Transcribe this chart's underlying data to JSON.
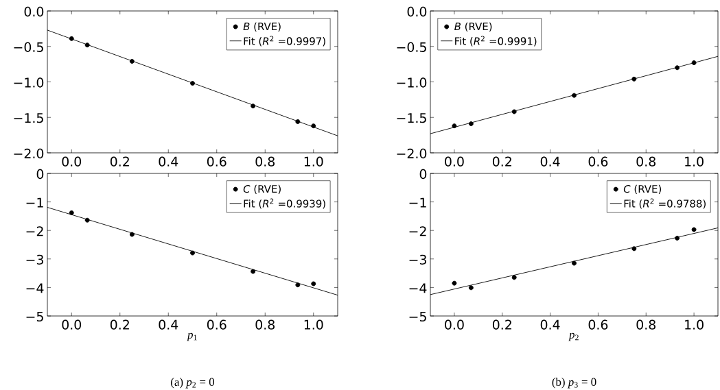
{
  "chart_data": [
    {
      "type": "scatter",
      "legend": "top right",
      "xlim": [
        -0.1,
        1.1
      ],
      "ylim": [
        -2.0,
        0.0
      ],
      "xticks": [
        {
          "value": 0,
          "label": "0.0"
        },
        {
          "value": 0.2,
          "label": "0.2"
        },
        {
          "value": 0.4,
          "label": "0.4"
        },
        {
          "value": 0.6,
          "label": "0.6"
        },
        {
          "value": 0.8,
          "label": "0.8"
        },
        {
          "value": 1,
          "label": "1.0"
        }
      ],
      "yticks": [
        {
          "value": -2,
          "label": "−2.0"
        },
        {
          "value": -1.5,
          "label": "−1.5"
        },
        {
          "value": -1,
          "label": "−1.0"
        },
        {
          "value": -0.5,
          "label": "−0.5"
        },
        {
          "value": 0,
          "label": "0.0"
        }
      ],
      "series": [
        {
          "name": "*B* (RVE)",
          "marker": "circle",
          "color": "#000000",
          "x": [
            0,
            0.065,
            0.25,
            0.5,
            0.75,
            0.935,
            1.0
          ],
          "values": [
            -0.39,
            -0.48,
            -0.71,
            -1.02,
            -1.34,
            -1.56,
            -1.62
          ]
        },
        {
          "name": "Fit (*R*$^{2}$ =0.9997)",
          "type": "line",
          "marker": "none",
          "line_style": "solid",
          "color": "#000000",
          "x": [
            -0.1,
            1.1
          ],
          "values": [
            -0.27,
            -1.76
          ]
        }
      ]
    },
    {
      "type": "scatter",
      "legend": "top left",
      "xlim": [
        -0.1,
        1.1
      ],
      "ylim": [
        -2.0,
        0.0
      ],
      "xticks": [
        {
          "value": 0,
          "label": "0.0"
        },
        {
          "value": 0.2,
          "label": "0.2"
        },
        {
          "value": 0.4,
          "label": "0.4"
        },
        {
          "value": 0.6,
          "label": "0.6"
        },
        {
          "value": 0.8,
          "label": "0.8"
        },
        {
          "value": 1,
          "label": "1.0"
        }
      ],
      "yticks": [
        {
          "value": -2,
          "label": "−2.0"
        },
        {
          "value": -1.5,
          "label": "−1.5"
        },
        {
          "value": -1,
          "label": "−1.0"
        },
        {
          "value": -0.5,
          "label": "−0.5"
        },
        {
          "value": 0,
          "label": "0.0"
        }
      ],
      "series": [
        {
          "name": "*B* (RVE)",
          "marker": "circle",
          "color": "#000000",
          "x": [
            0,
            0.07,
            0.25,
            0.5,
            0.75,
            0.93,
            1.0
          ],
          "values": [
            -1.62,
            -1.59,
            -1.42,
            -1.19,
            -0.96,
            -0.8,
            -0.73
          ]
        },
        {
          "name": "Fit (*R*$^{2}$ =0.9991)",
          "type": "line",
          "marker": "none",
          "line_style": "solid",
          "color": "#000000",
          "x": [
            -0.1,
            1.1
          ],
          "values": [
            -1.73,
            -0.64
          ]
        }
      ]
    },
    {
      "type": "scatter",
      "legend": "top right",
      "xlim": [
        -0.1,
        1.1
      ],
      "ylim": [
        -5,
        0
      ],
      "xlabel": "*p*$_{1}$",
      "annotations": [
        "(a) *p*$_{2}$ = 0"
      ],
      "xticks": [
        {
          "value": 0,
          "label": "0.0"
        },
        {
          "value": 0.2,
          "label": "0.2"
        },
        {
          "value": 0.4,
          "label": "0.4"
        },
        {
          "value": 0.6,
          "label": "0.6"
        },
        {
          "value": 0.8,
          "label": "0.8"
        },
        {
          "value": 1,
          "label": "1.0"
        }
      ],
      "yticks": [
        {
          "value": -5,
          "label": "−5"
        },
        {
          "value": -4,
          "label": "−4"
        },
        {
          "value": -3,
          "label": "−3"
        },
        {
          "value": -2,
          "label": "−2"
        },
        {
          "value": -1,
          "label": "−1"
        },
        {
          "value": 0,
          "label": "0"
        }
      ],
      "series": [
        {
          "name": "*C* (RVE)",
          "marker": "circle",
          "color": "#000000",
          "x": [
            0,
            0.065,
            0.25,
            0.5,
            0.75,
            0.935,
            1.0
          ],
          "values": [
            -1.38,
            -1.64,
            -2.14,
            -2.79,
            -3.44,
            -3.91,
            -3.87
          ]
        },
        {
          "name": "Fit (*R*$^{2}$ =0.9939)",
          "type": "line",
          "marker": "none",
          "line_style": "solid",
          "color": "#000000",
          "x": [
            -0.1,
            1.1
          ],
          "values": [
            -1.19,
            -4.27
          ]
        }
      ]
    },
    {
      "type": "scatter",
      "legend": "top right",
      "xlim": [
        -0.1,
        1.1
      ],
      "ylim": [
        -5,
        0
      ],
      "xlabel": "*p*$_{2}$",
      "annotations": [
        "(b) *p*$_{3}$ = 0"
      ],
      "xticks": [
        {
          "value": 0,
          "label": "0.0"
        },
        {
          "value": 0.2,
          "label": "0.2"
        },
        {
          "value": 0.4,
          "label": "0.4"
        },
        {
          "value": 0.6,
          "label": "0.6"
        },
        {
          "value": 0.8,
          "label": "0.8"
        },
        {
          "value": 1,
          "label": "1.0"
        }
      ],
      "yticks": [
        {
          "value": -5,
          "label": "−5"
        },
        {
          "value": -4,
          "label": "−4"
        },
        {
          "value": -3,
          "label": "−3"
        },
        {
          "value": -2,
          "label": "−2"
        },
        {
          "value": -1,
          "label": "−1"
        },
        {
          "value": 0,
          "label": "0"
        }
      ],
      "series": [
        {
          "name": "*C* (RVE)",
          "marker": "circle",
          "color": "#000000",
          "x": [
            0,
            0.07,
            0.25,
            0.5,
            0.75,
            0.93,
            1.0
          ],
          "values": [
            -3.85,
            -4.01,
            -3.65,
            -3.15,
            -2.64,
            -2.27,
            -1.97
          ]
        },
        {
          "name": "Fit (*R*$^{2}$ =0.9788)",
          "type": "line",
          "marker": "none",
          "line_style": "solid",
          "color": "#000000",
          "x": [
            -0.1,
            1.1
          ],
          "values": [
            -4.25,
            -1.91
          ]
        }
      ]
    }
  ]
}
